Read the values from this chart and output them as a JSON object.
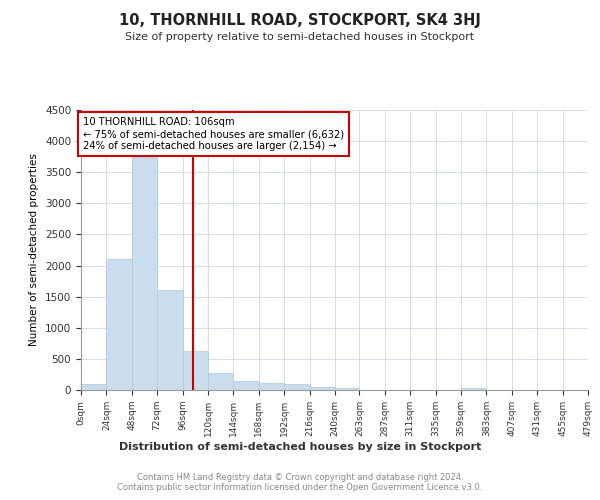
{
  "title": "10, THORNHILL ROAD, STOCKPORT, SK4 3HJ",
  "subtitle": "Size of property relative to semi-detached houses in Stockport",
  "xlabel": "Distribution of semi-detached houses by size in Stockport",
  "ylabel": "Number of semi-detached properties",
  "footer": "Contains HM Land Registry data © Crown copyright and database right 2024.\nContains public sector information licensed under the Open Government Licence v3.0.",
  "annotation_line1": "10 THORNHILL ROAD: 106sqm",
  "annotation_line2": "← 75% of semi-detached houses are smaller (6,632)",
  "annotation_line3": "24% of semi-detached houses are larger (2,154) →",
  "property_size": 106,
  "bar_color": "#c9dded",
  "bar_edge_color": "#aec8de",
  "vline_color": "#cc0000",
  "annotation_box_color": "#cc0000",
  "bin_lefts": [
    0,
    24,
    48,
    72,
    96,
    120,
    144,
    168,
    192,
    216,
    240,
    263,
    287,
    311,
    335,
    359,
    383,
    407,
    431,
    455
  ],
  "bin_rights": [
    24,
    48,
    72,
    96,
    120,
    144,
    168,
    192,
    216,
    240,
    263,
    287,
    311,
    335,
    359,
    383,
    407,
    431,
    455,
    479
  ],
  "bin_labels": [
    "0sqm",
    "24sqm",
    "48sqm",
    "72sqm",
    "96sqm",
    "120sqm",
    "144sqm",
    "168sqm",
    "192sqm",
    "216sqm",
    "240sqm",
    "263sqm",
    "287sqm",
    "311sqm",
    "335sqm",
    "359sqm",
    "383sqm",
    "407sqm",
    "431sqm",
    "455sqm",
    "479sqm"
  ],
  "counts": [
    100,
    2100,
    3750,
    1600,
    630,
    280,
    140,
    110,
    90,
    55,
    30,
    5,
    5,
    5,
    5,
    40,
    5,
    5,
    5,
    5
  ],
  "ylim": [
    0,
    4500
  ],
  "yticks": [
    0,
    500,
    1000,
    1500,
    2000,
    2500,
    3000,
    3500,
    4000,
    4500
  ],
  "background_color": "#ffffff",
  "grid_color": "#d0d8e8"
}
